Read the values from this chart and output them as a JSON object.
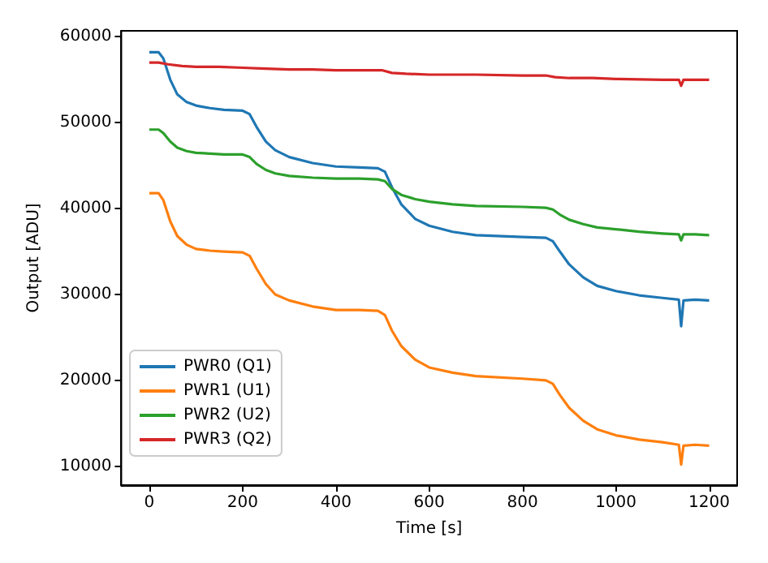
{
  "chart_data": {
    "type": "line",
    "xlabel": "Time [s]",
    "ylabel": "Output [ADU]",
    "xlim": [
      -60,
      1260
    ],
    "ylim": [
      7800,
      60700
    ],
    "xticks": [
      0,
      200,
      400,
      600,
      800,
      1000,
      1200
    ],
    "yticks": [
      10000,
      20000,
      30000,
      40000,
      50000,
      60000
    ],
    "grid": false,
    "legend": "bottom left",
    "marker": "none",
    "line_style": "solid",
    "series": [
      {
        "name": "PWR0 (Q1)",
        "color": "#1f77b4",
        "x": [
          0,
          20,
          30,
          45,
          60,
          80,
          100,
          130,
          160,
          200,
          215,
          230,
          250,
          270,
          300,
          350,
          400,
          450,
          490,
          505,
          520,
          540,
          570,
          600,
          650,
          700,
          800,
          850,
          865,
          880,
          900,
          930,
          960,
          1000,
          1050,
          1100,
          1135,
          1140,
          1145,
          1170,
          1200
        ],
        "values": [
          58200,
          58200,
          57500,
          55000,
          53300,
          52400,
          52000,
          51700,
          51500,
          51400,
          51000,
          49500,
          47800,
          46800,
          46000,
          45300,
          44900,
          44800,
          44700,
          44300,
          42500,
          40500,
          38800,
          38000,
          37300,
          36900,
          36700,
          36600,
          36200,
          35000,
          33500,
          32000,
          31000,
          30400,
          29900,
          29600,
          29400,
          26300,
          29300,
          29400,
          29300
        ]
      },
      {
        "name": "PWR1 (U1)",
        "color": "#ff7f0e",
        "x": [
          0,
          20,
          30,
          45,
          60,
          80,
          100,
          130,
          160,
          200,
          215,
          230,
          250,
          270,
          300,
          350,
          400,
          450,
          490,
          505,
          520,
          540,
          570,
          600,
          650,
          700,
          800,
          850,
          865,
          880,
          900,
          930,
          960,
          1000,
          1050,
          1100,
          1135,
          1140,
          1145,
          1170,
          1200
        ],
        "values": [
          41800,
          41800,
          41000,
          38500,
          36800,
          35800,
          35300,
          35100,
          35000,
          34900,
          34500,
          33000,
          31200,
          30000,
          29300,
          28600,
          28200,
          28200,
          28100,
          27600,
          25800,
          24000,
          22400,
          21500,
          20900,
          20500,
          20200,
          20000,
          19600,
          18300,
          16800,
          15300,
          14300,
          13600,
          13100,
          12800,
          12500,
          10200,
          12400,
          12500,
          12400
        ]
      },
      {
        "name": "PWR2 (U2)",
        "color": "#2ca02c",
        "x": [
          0,
          20,
          30,
          45,
          60,
          80,
          100,
          130,
          160,
          200,
          215,
          230,
          250,
          270,
          300,
          350,
          400,
          450,
          490,
          505,
          520,
          540,
          570,
          600,
          650,
          700,
          800,
          850,
          865,
          880,
          900,
          930,
          960,
          1000,
          1050,
          1100,
          1135,
          1140,
          1145,
          1170,
          1200
        ],
        "values": [
          49200,
          49200,
          48800,
          47800,
          47100,
          46700,
          46500,
          46400,
          46300,
          46300,
          46000,
          45200,
          44500,
          44100,
          43800,
          43600,
          43500,
          43500,
          43400,
          43200,
          42300,
          41600,
          41100,
          40800,
          40500,
          40300,
          40200,
          40100,
          39900,
          39300,
          38700,
          38200,
          37800,
          37600,
          37300,
          37100,
          37000,
          36300,
          37000,
          37000,
          36900
        ]
      },
      {
        "name": "PWR3 (Q2)",
        "color": "#d62728",
        "x": [
          0,
          20,
          40,
          70,
          100,
          150,
          200,
          250,
          300,
          350,
          400,
          450,
          500,
          520,
          550,
          600,
          700,
          800,
          850,
          870,
          900,
          950,
          1000,
          1100,
          1135,
          1140,
          1145,
          1170,
          1200
        ],
        "values": [
          57000,
          57000,
          56800,
          56600,
          56500,
          56500,
          56400,
          56300,
          56200,
          56200,
          56100,
          56100,
          56100,
          55800,
          55700,
          55600,
          55600,
          55500,
          55500,
          55300,
          55200,
          55200,
          55100,
          55000,
          55000,
          54300,
          55000,
          55000,
          55000
        ]
      }
    ]
  }
}
